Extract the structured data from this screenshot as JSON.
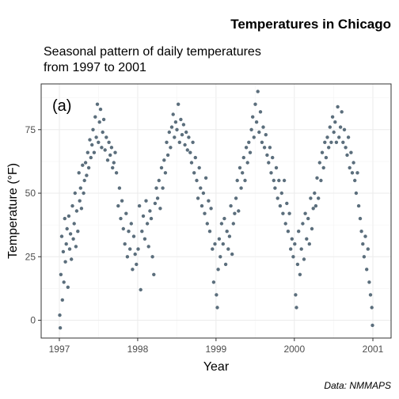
{
  "chart_data": {
    "type": "scatter",
    "title": "Temperatures in Chicago",
    "subtitle_lines": [
      "Seasonal pattern of daily temperatures",
      "from 1997 to 2001"
    ],
    "caption": "Data: NMMAPS",
    "panel_tag": "(a)",
    "xlabel": "Year",
    "ylabel": "Temperature (°F)",
    "x_ticks": [
      "1997",
      "1998",
      "1999",
      "2000",
      "2001"
    ],
    "y_ticks": [
      0,
      25,
      50,
      75
    ],
    "xlim": [
      "1997-01-01",
      "2001-01-01"
    ],
    "ylim": [
      -7,
      93
    ],
    "grid": true,
    "point_color": "#5b6e7c",
    "series": [
      {
        "points": [
          [
            "1997-01-03",
            2
          ],
          [
            "1997-01-05",
            -3
          ],
          [
            "1997-01-08",
            18
          ],
          [
            "1997-01-12",
            33
          ],
          [
            "1997-01-15",
            8
          ],
          [
            "1997-01-19",
            27
          ],
          [
            "1997-01-22",
            15
          ],
          [
            "1997-01-26",
            40
          ],
          [
            "1997-01-29",
            23
          ],
          [
            "1997-02-02",
            30
          ],
          [
            "1997-02-06",
            36
          ],
          [
            "1997-02-10",
            13
          ],
          [
            "1997-02-14",
            41
          ],
          [
            "1997-02-18",
            28
          ],
          [
            "1997-02-22",
            34
          ],
          [
            "1997-02-26",
            24
          ],
          [
            "1997-03-03",
            45
          ],
          [
            "1997-03-07",
            32
          ],
          [
            "1997-03-11",
            38
          ],
          [
            "1997-03-15",
            50
          ],
          [
            "1997-03-19",
            29
          ],
          [
            "1997-03-23",
            43
          ],
          [
            "1997-03-28",
            35
          ],
          [
            "1997-04-02",
            58
          ],
          [
            "1997-04-06",
            47
          ],
          [
            "1997-04-10",
            52
          ],
          [
            "1997-04-14",
            44
          ],
          [
            "1997-04-19",
            61
          ],
          [
            "1997-04-24",
            50
          ],
          [
            "1997-04-28",
            55
          ],
          [
            "1997-05-03",
            62
          ],
          [
            "1997-05-08",
            57
          ],
          [
            "1997-05-13",
            66
          ],
          [
            "1997-05-18",
            60
          ],
          [
            "1997-05-23",
            71
          ],
          [
            "1997-05-28",
            64
          ],
          [
            "1997-06-02",
            69
          ],
          [
            "1997-06-07",
            75
          ],
          [
            "1997-06-12",
            66
          ],
          [
            "1997-06-17",
            80
          ],
          [
            "1997-06-22",
            72
          ],
          [
            "1997-06-27",
            85
          ],
          [
            "1997-07-02",
            70
          ],
          [
            "1997-07-07",
            78
          ],
          [
            "1997-07-12",
            83
          ],
          [
            "1997-07-17",
            68
          ],
          [
            "1997-07-22",
            74
          ],
          [
            "1997-07-27",
            79
          ],
          [
            "1997-08-02",
            67
          ],
          [
            "1997-08-08",
            72
          ],
          [
            "1997-08-14",
            63
          ],
          [
            "1997-08-20",
            70
          ],
          [
            "1997-08-26",
            65
          ],
          [
            "1997-09-01",
            68
          ],
          [
            "1997-09-06",
            60
          ],
          [
            "1997-09-12",
            62
          ],
          [
            "1997-09-18",
            66
          ],
          [
            "1997-09-24",
            58
          ],
          [
            "1997-10-02",
            45
          ],
          [
            "1997-10-08",
            52
          ],
          [
            "1997-10-14",
            40
          ],
          [
            "1997-10-20",
            47
          ],
          [
            "1997-10-26",
            36
          ],
          [
            "1997-11-02",
            30
          ],
          [
            "1997-11-08",
            42
          ],
          [
            "1997-11-14",
            25
          ],
          [
            "1997-11-20",
            35
          ],
          [
            "1997-11-26",
            28
          ],
          [
            "1997-12-02",
            38
          ],
          [
            "1997-12-08",
            20
          ],
          [
            "1997-12-14",
            33
          ],
          [
            "1997-12-20",
            26
          ],
          [
            "1997-12-26",
            22
          ],
          [
            "1998-01-03",
            28
          ],
          [
            "1998-01-09",
            45
          ],
          [
            "1998-01-15",
            12
          ],
          [
            "1998-01-21",
            35
          ],
          [
            "1998-01-27",
            41
          ],
          [
            "1998-02-03",
            32
          ],
          [
            "1998-02-09",
            47
          ],
          [
            "1998-02-15",
            38
          ],
          [
            "1998-02-21",
            29
          ],
          [
            "1998-02-27",
            43
          ],
          [
            "1998-03-05",
            40
          ],
          [
            "1998-03-11",
            25
          ],
          [
            "1998-03-17",
            18
          ],
          [
            "1998-03-23",
            46
          ],
          [
            "1998-03-29",
            52
          ],
          [
            "1998-04-04",
            48
          ],
          [
            "1998-04-10",
            55
          ],
          [
            "1998-04-16",
            44
          ],
          [
            "1998-04-22",
            60
          ],
          [
            "1998-04-28",
            52
          ],
          [
            "1998-05-04",
            63
          ],
          [
            "1998-05-10",
            58
          ],
          [
            "1998-05-16",
            70
          ],
          [
            "1998-05-22",
            65
          ],
          [
            "1998-05-28",
            74
          ],
          [
            "1998-06-03",
            68
          ],
          [
            "1998-06-09",
            76
          ],
          [
            "1998-06-15",
            81
          ],
          [
            "1998-06-21",
            72
          ],
          [
            "1998-06-27",
            78
          ],
          [
            "1998-07-03",
            75
          ],
          [
            "1998-07-09",
            85
          ],
          [
            "1998-07-15",
            70
          ],
          [
            "1998-07-21",
            79
          ],
          [
            "1998-07-27",
            73
          ],
          [
            "1998-08-03",
            77
          ],
          [
            "1998-08-09",
            69
          ],
          [
            "1998-08-15",
            74
          ],
          [
            "1998-08-21",
            67
          ],
          [
            "1998-08-27",
            72
          ],
          [
            "1998-09-03",
            66
          ],
          [
            "1998-09-09",
            62
          ],
          [
            "1998-09-15",
            70
          ],
          [
            "1998-09-21",
            58
          ],
          [
            "1998-09-27",
            64
          ],
          [
            "1998-10-03",
            55
          ],
          [
            "1998-10-09",
            48
          ],
          [
            "1998-10-15",
            60
          ],
          [
            "1998-10-21",
            52
          ],
          [
            "1998-10-27",
            45
          ],
          [
            "1998-11-03",
            50
          ],
          [
            "1998-11-09",
            42
          ],
          [
            "1998-11-15",
            56
          ],
          [
            "1998-11-21",
            38
          ],
          [
            "1998-11-27",
            47
          ],
          [
            "1998-12-03",
            35
          ],
          [
            "1998-12-09",
            44
          ],
          [
            "1998-12-15",
            28
          ],
          [
            "1998-12-21",
            15
          ],
          [
            "1998-12-27",
            30
          ],
          [
            "1999-01-03",
            10
          ],
          [
            "1999-01-07",
            5
          ],
          [
            "1999-01-11",
            20
          ],
          [
            "1999-01-16",
            32
          ],
          [
            "1999-01-21",
            25
          ],
          [
            "1999-01-27",
            38
          ],
          [
            "1999-02-03",
            30
          ],
          [
            "1999-02-09",
            40
          ],
          [
            "1999-02-15",
            22
          ],
          [
            "1999-02-21",
            35
          ],
          [
            "1999-02-27",
            28
          ],
          [
            "1999-03-05",
            33
          ],
          [
            "1999-03-11",
            45
          ],
          [
            "1999-03-17",
            26
          ],
          [
            "1999-03-23",
            38
          ],
          [
            "1999-03-29",
            42
          ],
          [
            "1999-04-04",
            48
          ],
          [
            "1999-04-10",
            55
          ],
          [
            "1999-04-16",
            43
          ],
          [
            "1999-04-22",
            60
          ],
          [
            "1999-04-28",
            52
          ],
          [
            "1999-05-04",
            58
          ],
          [
            "1999-05-10",
            64
          ],
          [
            "1999-05-16",
            55
          ],
          [
            "1999-05-22",
            68
          ],
          [
            "1999-05-28",
            62
          ],
          [
            "1999-06-03",
            70
          ],
          [
            "1999-06-09",
            66
          ],
          [
            "1999-06-15",
            75
          ],
          [
            "1999-06-21",
            80
          ],
          [
            "1999-06-27",
            72
          ],
          [
            "1999-07-03",
            85
          ],
          [
            "1999-07-09",
            78
          ],
          [
            "1999-07-15",
            90
          ],
          [
            "1999-07-21",
            74
          ],
          [
            "1999-07-27",
            82
          ],
          [
            "1999-08-03",
            70
          ],
          [
            "1999-08-09",
            76
          ],
          [
            "1999-08-15",
            68
          ],
          [
            "1999-08-21",
            73
          ],
          [
            "1999-08-27",
            65
          ],
          [
            "1999-09-03",
            62
          ],
          [
            "1999-09-09",
            68
          ],
          [
            "1999-09-15",
            58
          ],
          [
            "1999-09-21",
            64
          ],
          [
            "1999-09-27",
            55
          ],
          [
            "1999-10-03",
            52
          ],
          [
            "1999-10-09",
            60
          ],
          [
            "1999-10-15",
            48
          ],
          [
            "1999-10-21",
            55
          ],
          [
            "1999-10-27",
            45
          ],
          [
            "1999-11-03",
            50
          ],
          [
            "1999-11-09",
            42
          ],
          [
            "1999-11-15",
            55
          ],
          [
            "1999-11-21",
            38
          ],
          [
            "1999-11-27",
            46
          ],
          [
            "1999-12-03",
            35
          ],
          [
            "1999-12-09",
            42
          ],
          [
            "1999-12-15",
            28
          ],
          [
            "1999-12-21",
            32
          ],
          [
            "1999-12-27",
            25
          ],
          [
            "2000-01-03",
            30
          ],
          [
            "2000-01-07",
            10
          ],
          [
            "2000-01-11",
            5
          ],
          [
            "2000-01-16",
            22
          ],
          [
            "2000-01-21",
            35
          ],
          [
            "2000-01-27",
            18
          ],
          [
            "2000-02-03",
            28
          ],
          [
            "2000-02-09",
            38
          ],
          [
            "2000-02-15",
            24
          ],
          [
            "2000-02-21",
            42
          ],
          [
            "2000-02-27",
            32
          ],
          [
            "2000-03-05",
            40
          ],
          [
            "2000-03-11",
            30
          ],
          [
            "2000-03-17",
            48
          ],
          [
            "2000-03-23",
            36
          ],
          [
            "2000-03-29",
            44
          ],
          [
            "2000-04-04",
            50
          ],
          [
            "2000-04-10",
            45
          ],
          [
            "2000-04-16",
            56
          ],
          [
            "2000-04-22",
            48
          ],
          [
            "2000-04-28",
            62
          ],
          [
            "2000-05-04",
            55
          ],
          [
            "2000-05-10",
            66
          ],
          [
            "2000-05-16",
            60
          ],
          [
            "2000-05-22",
            70
          ],
          [
            "2000-05-28",
            64
          ],
          [
            "2000-06-03",
            72
          ],
          [
            "2000-06-09",
            68
          ],
          [
            "2000-06-15",
            76
          ],
          [
            "2000-06-21",
            70
          ],
          [
            "2000-06-27",
            80
          ],
          [
            "2000-07-03",
            74
          ],
          [
            "2000-07-09",
            78
          ],
          [
            "2000-07-15",
            70
          ],
          [
            "2000-07-21",
            84
          ],
          [
            "2000-07-27",
            72
          ],
          [
            "2000-08-03",
            76
          ],
          [
            "2000-08-09",
            82
          ],
          [
            "2000-08-15",
            70
          ],
          [
            "2000-08-21",
            75
          ],
          [
            "2000-08-27",
            68
          ],
          [
            "2000-09-03",
            65
          ],
          [
            "2000-09-09",
            72
          ],
          [
            "2000-09-15",
            60
          ],
          [
            "2000-09-21",
            66
          ],
          [
            "2000-09-27",
            58
          ],
          [
            "2000-10-03",
            62
          ],
          [
            "2000-10-09",
            55
          ],
          [
            "2000-10-15",
            50
          ],
          [
            "2000-10-21",
            58
          ],
          [
            "2000-10-27",
            45
          ],
          [
            "2000-11-03",
            40
          ],
          [
            "2000-11-09",
            35
          ],
          [
            "2000-11-15",
            30
          ],
          [
            "2000-11-21",
            25
          ],
          [
            "2000-11-27",
            33
          ],
          [
            "2000-12-03",
            20
          ],
          [
            "2000-12-09",
            28
          ],
          [
            "2000-12-15",
            15
          ],
          [
            "2000-12-21",
            10
          ],
          [
            "2000-12-27",
            5
          ],
          [
            "2000-12-30",
            -2
          ]
        ]
      }
    ]
  }
}
